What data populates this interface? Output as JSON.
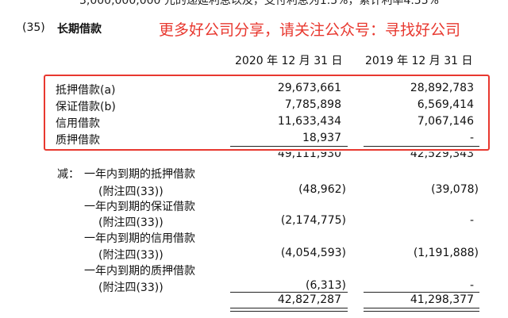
{
  "top_cut_text": "3,000,000,000 元的递延利息以及，支付利息为1.5%，累计利率4.55%",
  "section": {
    "number": "(35)",
    "title": "长期借款"
  },
  "watermark": "更多好公司分享，请关注公众号：寻找好公司",
  "columns": [
    "2020 年 12 月 31 日",
    "2019 年 12 月 31 日"
  ],
  "rows": [
    {
      "label": "抵押借款(a)",
      "v2020": "29,673,661",
      "v2019": "28,892,783"
    },
    {
      "label": "保证借款(b)",
      "v2020": "7,785,898",
      "v2019": "6,569,414"
    },
    {
      "label": "信用借款",
      "v2020": "11,633,434",
      "v2019": "7,067,146"
    },
    {
      "label": "质押借款",
      "v2020": "18,937",
      "v2019": "-"
    }
  ],
  "subtotal": {
    "v2020": "49,111,930",
    "v2019": "42,529,343"
  },
  "less_prefix": "减：",
  "deductions": [
    {
      "label": "一年内到期的抵押借款",
      "note": "(附注四(33))",
      "v2020": "(48,962)",
      "v2019": "(39,078)"
    },
    {
      "label": "一年内到期的保证借款",
      "note": "(附注四(33))",
      "v2020": "(2,174,775)",
      "v2019": "-"
    },
    {
      "label": "一年内到期的信用借款",
      "note": "(附注四(33))",
      "v2020": "(4,054,593)",
      "v2019": "(1,191,888)"
    },
    {
      "label": "一年内到期的质押借款",
      "note": "(附注四(33))",
      "v2020": "(6,313)",
      "v2019": "-"
    }
  ],
  "total": {
    "v2020": "42,827,287",
    "v2019": "41,298,377"
  }
}
